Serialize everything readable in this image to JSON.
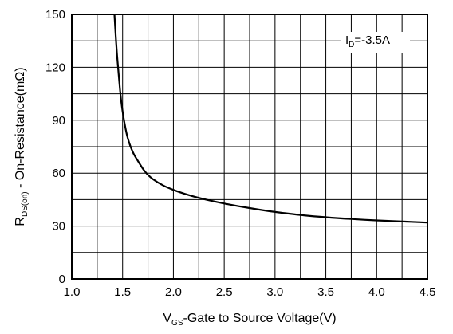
{
  "chart_data": {
    "type": "line",
    "title": "",
    "xlabel": {
      "main": "V",
      "sub": "GS",
      "rest": "-Gate to Source Voltage(V)"
    },
    "ylabel": {
      "main": "R",
      "sub": "DS(on)",
      "rest": " - On-Resistance(mΩ)"
    },
    "xlim": [
      1.0,
      4.5
    ],
    "ylim": [
      0,
      150
    ],
    "x_ticks": [
      1.0,
      1.5,
      2.0,
      2.5,
      3.0,
      3.5,
      4.0,
      4.5
    ],
    "x_tick_labels": [
      "1.0",
      "1.5",
      "2.0",
      "2.5",
      "3.0",
      "3.5",
      "4.0",
      "4.5"
    ],
    "y_ticks": [
      0,
      30,
      60,
      90,
      120,
      150
    ],
    "y_tick_labels": [
      "0",
      "30",
      "60",
      "90",
      "120",
      "150"
    ],
    "grid": true,
    "grid_x_step": 0.25,
    "grid_y_step": 15,
    "annotation": {
      "main": "I",
      "sub": "D",
      "rest": "=-3.5A"
    },
    "series": [
      {
        "x": [
          1.42,
          1.44,
          1.46,
          1.48,
          1.5,
          1.52,
          1.55,
          1.6,
          1.65,
          1.7,
          1.75,
          1.8,
          1.9,
          2.0,
          2.1,
          2.25,
          2.5,
          2.75,
          3.0,
          3.25,
          3.5,
          3.75,
          4.0,
          4.25,
          4.5
        ],
        "y": [
          150,
          131,
          117,
          104,
          95,
          88,
          80,
          72,
          67,
          62.5,
          59,
          56.5,
          53,
          50.5,
          48.5,
          46,
          42.8,
          40.2,
          38,
          36.3,
          35,
          34,
          33.2,
          32.6,
          32
        ]
      }
    ]
  }
}
